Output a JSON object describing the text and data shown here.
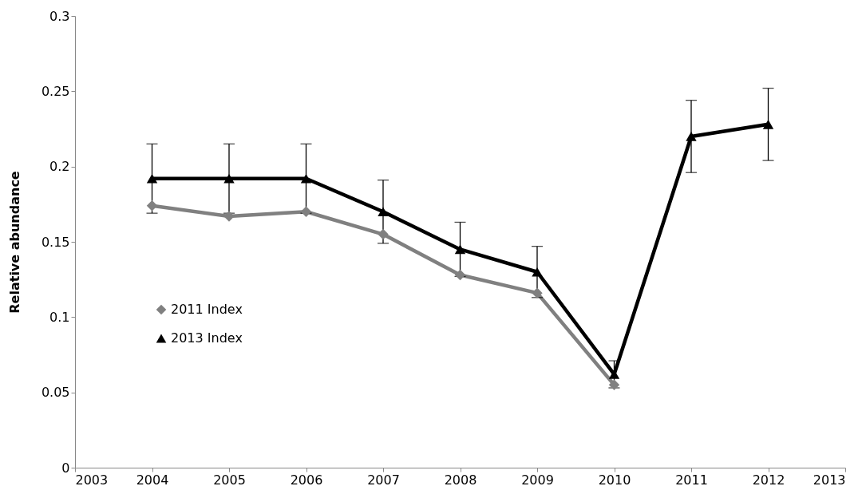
{
  "chart_data": {
    "type": "line",
    "ylabel": "Relative abundance",
    "x": [
      2004,
      2005,
      2006,
      2007,
      2008,
      2009,
      2010,
      2011,
      2012
    ],
    "series": [
      {
        "name": "2011 Index",
        "color": "#808080",
        "marker": "diamond",
        "values": [
          0.174,
          0.167,
          0.17,
          0.155,
          0.128,
          0.116,
          0.055,
          null,
          null
        ]
      },
      {
        "name": "2013 Index",
        "color": "#000000",
        "marker": "triangle",
        "values": [
          0.192,
          0.192,
          0.192,
          0.17,
          0.145,
          0.13,
          0.062,
          0.22,
          0.228
        ],
        "errors": [
          0.023,
          0.023,
          0.023,
          0.021,
          0.018,
          0.017,
          0.009,
          0.024,
          0.024
        ]
      }
    ],
    "xlim": [
      2003,
      2013
    ],
    "xticks": [
      2003,
      2004,
      2005,
      2006,
      2007,
      2008,
      2009,
      2010,
      2011,
      2012,
      2013
    ],
    "ylim": [
      0,
      0.3
    ],
    "yticks": [
      0,
      0.05,
      0.1,
      0.15,
      0.2,
      0.25,
      0.3
    ],
    "grid": false,
    "legend": "left"
  }
}
